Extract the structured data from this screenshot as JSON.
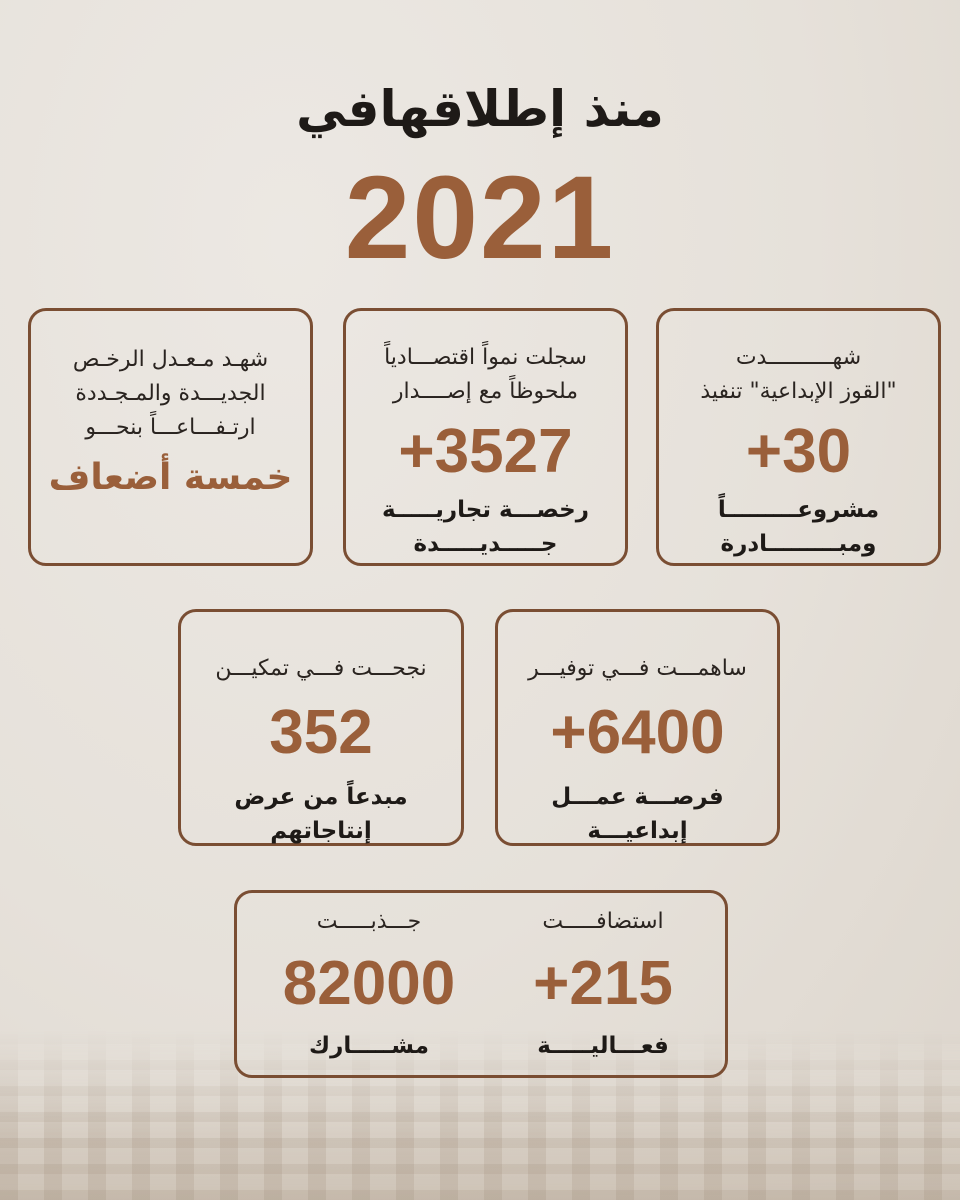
{
  "header": {
    "title": "منذ إطلاقهافي",
    "year": "2021"
  },
  "colors": {
    "accent": "#9a5f3a",
    "border": "#7a4e33",
    "background": "#e9e4de"
  },
  "cards": [
    {
      "lines": [
        "شهـد مـعـدل الرخـص",
        "الجديـــدة والمـجـددة",
        "ارتـفـــاعـــاً بنحـــو"
      ],
      "highlight": "خمسة أضعاف"
    },
    {
      "lines": [
        "سجلت نمواً اقتصـــادياً",
        "ملحوظاً مع إصــــدار"
      ],
      "number": "+3527",
      "caption": [
        "رخصـــة تجاريـــــة",
        "جـــــديـــــدة"
      ]
    },
    {
      "lines": [
        "شهــــــــــدت",
        "\"القوز الإبداعية\" تنفيذ"
      ],
      "number": "+30",
      "caption": [
        "مشروعـــــــــاً",
        "ومبـــــــــادرة"
      ]
    },
    {
      "lines": [
        "نجحـــت فـــي تمكيـــن"
      ],
      "number": "352",
      "caption": [
        "مبدعاً من عرض إنتاجاتهم"
      ]
    },
    {
      "lines": [
        "ساهمـــت فـــي توفيـــر"
      ],
      "number": "+6400",
      "caption": [
        "فرصـــة عمـــل إبداعيـــة"
      ]
    },
    {
      "left": {
        "lines": [
          "جـــذبـــــت"
        ],
        "number": "82000",
        "caption": [
          "مشـــــارك"
        ]
      },
      "right": {
        "lines": [
          "استضافـــــت"
        ],
        "number": "+215",
        "caption": [
          "فعـــاليـــــة"
        ]
      }
    }
  ]
}
